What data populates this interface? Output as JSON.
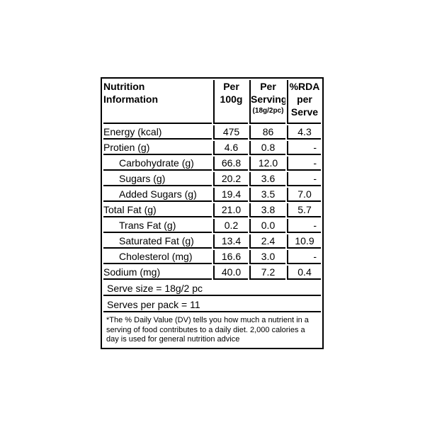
{
  "colors": {
    "background": "#ffffff",
    "text": "#000000",
    "border": "#000000"
  },
  "table": {
    "header": {
      "nutrition": "Nutrition Information",
      "per_100g": "Per 100g",
      "per_serving": "Per Serving",
      "per_serving_sub": "(18g/2pc)",
      "rda": "%RDA per Serve"
    },
    "rows": [
      {
        "label": "Energy (kcal)",
        "indent": false,
        "per_100g": "475",
        "per_serving": "86",
        "rda": "4.3"
      },
      {
        "label": "Protien (g)",
        "indent": false,
        "per_100g": "4.6",
        "per_serving": "0.8",
        "rda": "-"
      },
      {
        "label": "Carbohydrate (g)",
        "indent": true,
        "per_100g": "66.8",
        "per_serving": "12.0",
        "rda": "-"
      },
      {
        "label": "Sugars (g)",
        "indent": true,
        "per_100g": "20.2",
        "per_serving": "3.6",
        "rda": "-"
      },
      {
        "label": "Added Sugars (g)",
        "indent": true,
        "per_100g": "19.4",
        "per_serving": "3.5",
        "rda": "7.0"
      },
      {
        "label": "Total Fat (g)",
        "indent": false,
        "per_100g": "21.0",
        "per_serving": "3.8",
        "rda": "5.7"
      },
      {
        "label": "Trans Fat (g)",
        "indent": true,
        "per_100g": "0.2",
        "per_serving": "0.0",
        "rda": "-"
      },
      {
        "label": "Saturated Fat (g)",
        "indent": true,
        "per_100g": "13.4",
        "per_serving": "2.4",
        "rda": "10.9"
      },
      {
        "label": "Cholesterol (mg)",
        "indent": true,
        "per_100g": "16.6",
        "per_serving": "3.0",
        "rda": "-"
      },
      {
        "label": "Sodium (mg)",
        "indent": false,
        "per_100g": "40.0",
        "per_serving": "7.2",
        "rda": "0.4"
      }
    ],
    "serve_size": "Serve size = 18g/2 pc",
    "serves_per_pack": "Serves per pack = 11",
    "footnote": "*The % Daily Value (DV) tells you how much a nutrient in a serving of food contributes to a daily diet. 2,000 calories a day is used for general nutrition advice"
  }
}
